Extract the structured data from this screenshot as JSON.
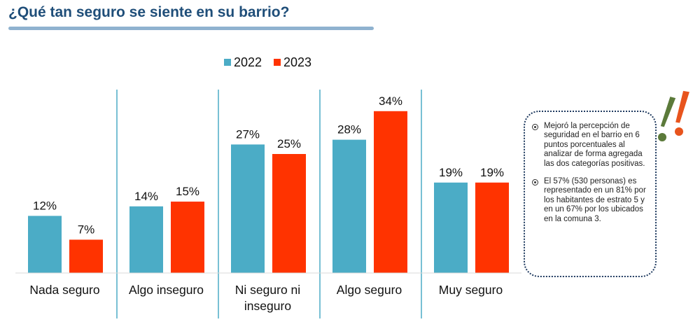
{
  "page": {
    "title": "¿Qué tan seguro se siente en su barrio?"
  },
  "chart_data": {
    "type": "bar",
    "categories": [
      [
        "Nada seguro"
      ],
      [
        "Algo inseguro"
      ],
      [
        "Ni seguro ni",
        "inseguro"
      ],
      [
        "Algo seguro"
      ],
      [
        "Muy seguro"
      ]
    ],
    "series": [
      {
        "name": "2022",
        "color": "#4bacc6",
        "values": [
          12,
          14,
          27,
          28,
          19
        ],
        "labels": [
          "12%",
          "14%",
          "27%",
          "28%",
          "19%"
        ]
      },
      {
        "name": "2023",
        "color": "#ff3300",
        "values": [
          7,
          15,
          25,
          34,
          19
        ],
        "labels": [
          "7%",
          "15%",
          "25%",
          "34%",
          "19%"
        ]
      }
    ],
    "ylim": [
      0,
      40
    ],
    "legend_position": "top",
    "grid": false
  },
  "notes": [
    "Mejoró la percepción de seguridad en el barrio en 6 puntos porcentuales  al analizar de forma agregada las dos categorías positivas.",
    "El 57% (530 personas) es representado en un 81% por los habitantes de estrato 5 y en un 67% por los ubicados en la comuna 3."
  ],
  "colors": {
    "title": "#1f4e79",
    "divider": "#4bacc6",
    "accent_green": "#5b7a3a",
    "accent_orange": "#e8541d"
  },
  "icons": {
    "decoration": "exclamation-marks-icon"
  }
}
